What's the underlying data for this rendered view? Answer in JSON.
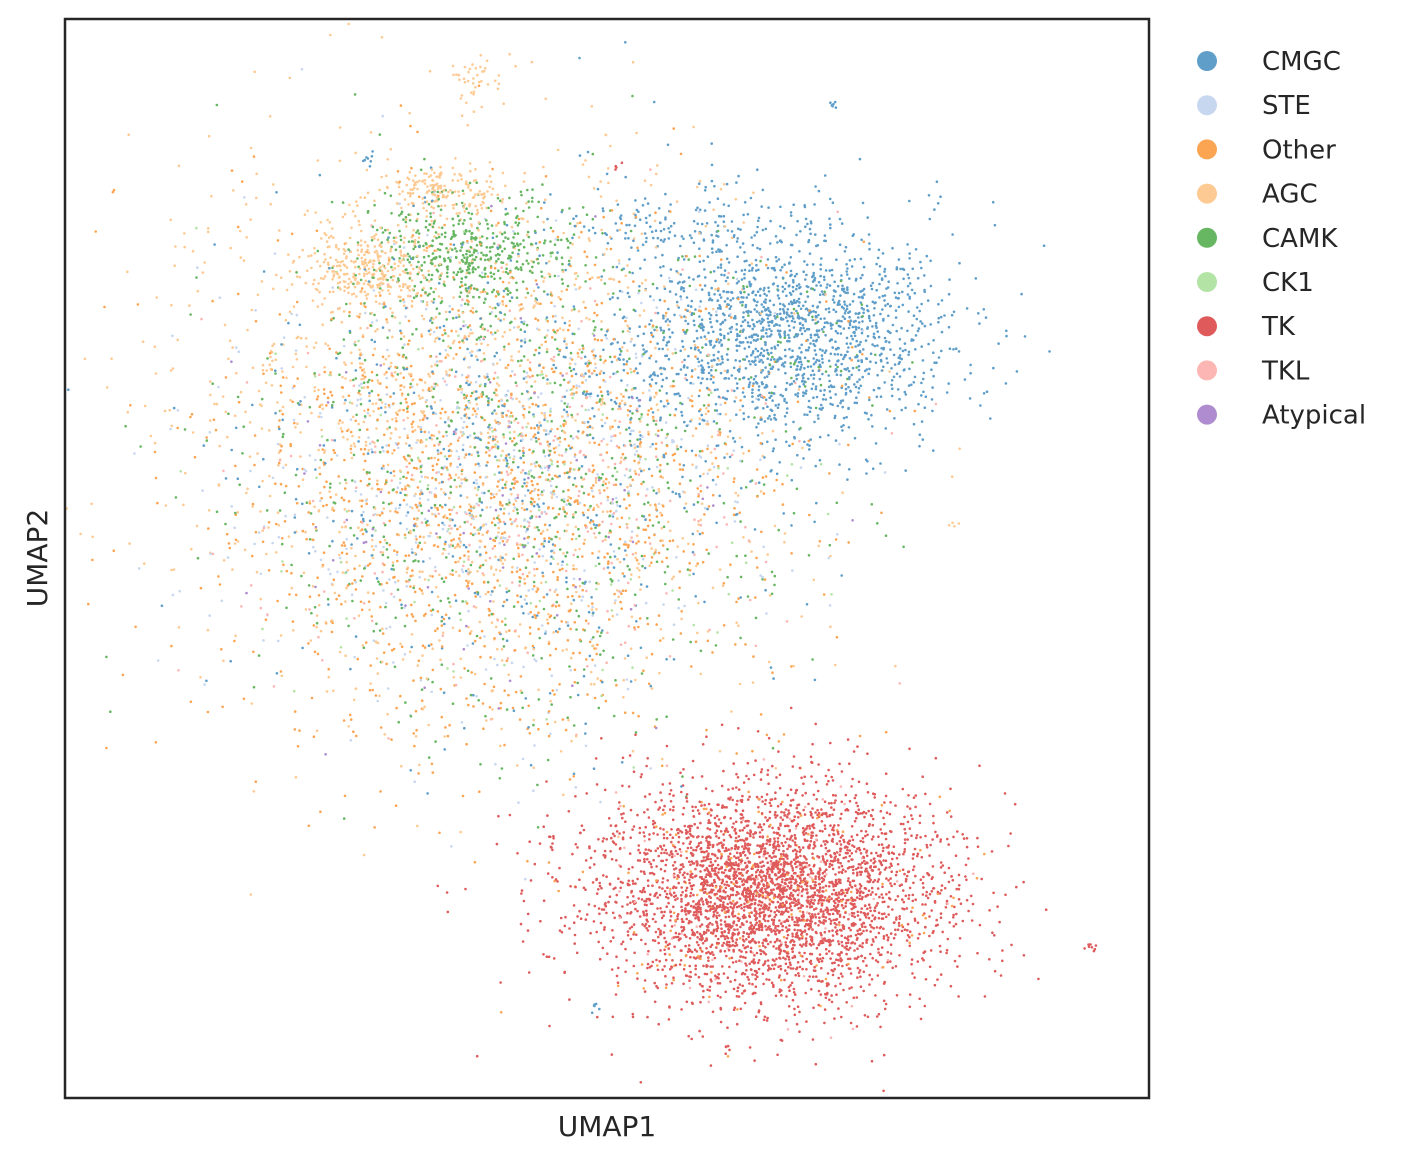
{
  "chart_data": {
    "type": "scatter",
    "title": "",
    "xlabel": "UMAP1",
    "ylabel": "UMAP2",
    "xlim": [
      0,
      100
    ],
    "ylim": [
      0,
      100
    ],
    "xticks": false,
    "yticks": false,
    "grid": false,
    "legend_position": "outside-right",
    "series": [
      {
        "name": "CMGC",
        "color": "#5f9ec9",
        "clusters": [
          {
            "cx": 67,
            "cy": 71,
            "sx": 7.5,
            "sy": 5.0,
            "n": 1600
          },
          {
            "cx": 42,
            "cy": 60,
            "sx": 13,
            "sy": 12,
            "n": 550
          },
          {
            "cx": 55,
            "cy": 81,
            "sx": 5,
            "sy": 1.5,
            "n": 120
          },
          {
            "cx": 28,
            "cy": 87,
            "sx": 0.4,
            "sy": 0.3,
            "n": 8
          },
          {
            "cx": 71,
            "cy": 92,
            "sx": 0.3,
            "sy": 0.2,
            "n": 6
          },
          {
            "cx": 49,
            "cy": 8.5,
            "sx": 0.3,
            "sy": 0.2,
            "n": 6
          }
        ]
      },
      {
        "name": "STE",
        "color": "#c6d7ef",
        "clusters": [
          {
            "cx": 40,
            "cy": 58,
            "sx": 12,
            "sy": 11,
            "n": 550
          }
        ]
      },
      {
        "name": "Other",
        "color": "#fba553",
        "clusters": [
          {
            "cx": 40,
            "cy": 57,
            "sx": 13,
            "sy": 12,
            "n": 1300
          },
          {
            "cx": 65,
            "cy": 19,
            "sx": 7,
            "sy": 5,
            "n": 150
          },
          {
            "cx": 4.5,
            "cy": 84,
            "sx": 0.1,
            "sy": 0.1,
            "n": 2
          }
        ]
      },
      {
        "name": "AGC",
        "color": "#fdca93",
        "clusters": [
          {
            "cx": 38,
            "cy": 62,
            "sx": 14,
            "sy": 13,
            "n": 1350
          },
          {
            "cx": 28,
            "cy": 77,
            "sx": 3,
            "sy": 2,
            "n": 300
          },
          {
            "cx": 35,
            "cy": 84,
            "sx": 3,
            "sy": 1.2,
            "n": 180
          },
          {
            "cx": 38,
            "cy": 94,
            "sx": 1.5,
            "sy": 1.2,
            "n": 40
          },
          {
            "cx": 19,
            "cy": 68,
            "sx": 0.5,
            "sy": 1.0,
            "n": 10
          },
          {
            "cx": 82,
            "cy": 53,
            "sx": 0.3,
            "sy": 0.2,
            "n": 4
          }
        ]
      },
      {
        "name": "CAMK",
        "color": "#67b662",
        "clusters": [
          {
            "cx": 37,
            "cy": 78,
            "sx": 5,
            "sy": 3,
            "n": 500
          },
          {
            "cx": 42,
            "cy": 57,
            "sx": 13,
            "sy": 11,
            "n": 650
          },
          {
            "cx": 65,
            "cy": 70,
            "sx": 6,
            "sy": 4,
            "n": 60
          }
        ]
      },
      {
        "name": "CK1",
        "color": "#b4e3a6",
        "clusters": [
          {
            "cx": 41,
            "cy": 57,
            "sx": 12,
            "sy": 10,
            "n": 140
          }
        ]
      },
      {
        "name": "TK",
        "color": "#df5b5b",
        "clusters": [
          {
            "cx": 65,
            "cy": 19,
            "sx": 8,
            "sy": 5,
            "n": 3600
          },
          {
            "cx": 94.5,
            "cy": 14,
            "sx": 0.4,
            "sy": 0.15,
            "n": 8
          },
          {
            "cx": 61,
            "cy": 4.5,
            "sx": 0.15,
            "sy": 0.3,
            "n": 5
          },
          {
            "cx": 45,
            "cy": 23.5,
            "sx": 0.2,
            "sy": 0.2,
            "n": 4
          },
          {
            "cx": 51,
            "cy": 86.5,
            "sx": 0.3,
            "sy": 0.2,
            "n": 4
          }
        ]
      },
      {
        "name": "TKL",
        "color": "#fcb6b4",
        "clusters": [
          {
            "cx": 42,
            "cy": 56,
            "sx": 12,
            "sy": 10,
            "n": 280
          },
          {
            "cx": 65,
            "cy": 19,
            "sx": 7,
            "sy": 5,
            "n": 80
          }
        ]
      },
      {
        "name": "Atypical",
        "color": "#af8ccf",
        "clusters": [
          {
            "cx": 41,
            "cy": 55,
            "sx": 12,
            "sy": 10,
            "n": 80
          }
        ]
      }
    ]
  }
}
